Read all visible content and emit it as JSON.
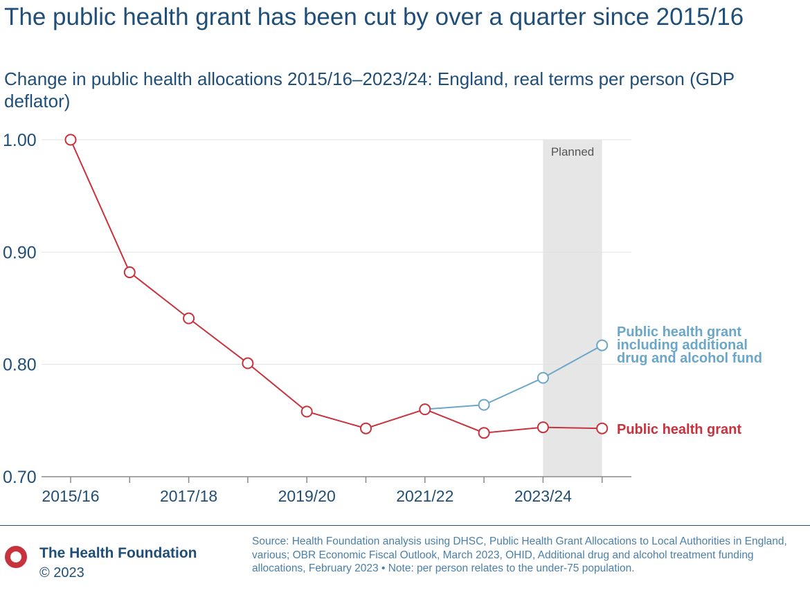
{
  "chart_data": {
    "type": "line",
    "title": "The public health grant has been cut by over a quarter since 2015/16",
    "subtitle": "Change in public health allocations 2015/16–2023/24: England, real terms per person (GDP deflator)",
    "x": [
      "2015/16",
      "2016/17",
      "2017/18",
      "2018/19",
      "2019/20",
      "2020/21",
      "2021/22",
      "2022/23",
      "2023/24",
      "2024/25"
    ],
    "x_tick_labels": [
      "2015/16",
      "",
      "2017/18",
      "",
      "2019/20",
      "",
      "2021/22",
      "",
      "2023/24",
      ""
    ],
    "y_ticks": [
      "1.00",
      "0.90",
      "0.80",
      "0.70"
    ],
    "ylim": [
      0.7,
      1.0
    ],
    "grid": true,
    "shaded_region": {
      "label": "Planned",
      "from": "2023/24",
      "to": "2024/25"
    },
    "series": [
      {
        "name": "Public health grant",
        "color": "#c8323c",
        "values": [
          1.0,
          0.882,
          0.841,
          0.801,
          0.758,
          0.743,
          0.76,
          0.739,
          0.744,
          0.743
        ]
      },
      {
        "name": "Public health grant including additional drug and alcohol fund",
        "label_lines": [
          "Public health grant",
          "including additional",
          "drug and alcohol fund"
        ],
        "color": "#6aa6c8",
        "values": [
          null,
          null,
          null,
          null,
          null,
          null,
          0.76,
          0.764,
          0.788,
          0.817
        ]
      }
    ]
  },
  "footer": {
    "organization": "The Health Foundation",
    "copyright": "© 2023",
    "logo_color": "#c8323c",
    "source_note": "Source: Health Foundation analysis using DHSC, Public Health Grant Allocations to Local Authorities in England, various; OBR Economic Fiscal Outlook, March 2023, OHID, Additional drug and alcohol treatment funding allocations, February 2023 • Note: per person relates to the under-75 population."
  }
}
